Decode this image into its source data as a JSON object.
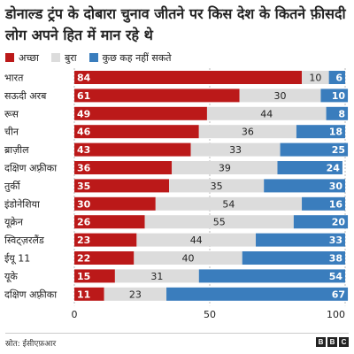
{
  "chart_data": {
    "type": "bar",
    "stacked": true,
    "orientation": "horizontal",
    "title": "डोनाल्ड ट्रंप के दोबारा चुनाव जीतने पर किस देश के कितने फ़ीसदी लोग अपने हित में मान रहे थे",
    "categories": [
      "भारत",
      "सऊदी अरब",
      "रूस",
      "चीन",
      "ब्राज़ील",
      "दक्षिण अफ़्रीका",
      "तुर्की",
      "इंडोनेशिया",
      "यूक्रेन",
      "स्विट्ज़रलैंड",
      "ईयू 11",
      "यूके",
      "दक्षिण अफ़्रीका"
    ],
    "series": [
      {
        "name": "अच्छा",
        "color": "#bb1919",
        "values": [
          84,
          61,
          49,
          46,
          43,
          36,
          35,
          30,
          26,
          23,
          22,
          15,
          11
        ]
      },
      {
        "name": "बुरा",
        "color": "#dcdcdc",
        "values": [
          10,
          30,
          44,
          36,
          33,
          39,
          35,
          54,
          55,
          44,
          40,
          31,
          23
        ]
      },
      {
        "name": "कुछ कह नहीं सकते",
        "color": "#3a7dbd",
        "values": [
          6,
          10,
          8,
          18,
          25,
          24,
          30,
          16,
          20,
          33,
          38,
          54,
          67
        ]
      }
    ],
    "xlim": [
      0,
      100
    ],
    "xticks": [
      "0",
      "50",
      "100"
    ],
    "grid": true,
    "legend_position": "top-left"
  },
  "source": "स्रोत: ईसीएफ़आर",
  "logo_letters": [
    "B",
    "B",
    "C"
  ]
}
